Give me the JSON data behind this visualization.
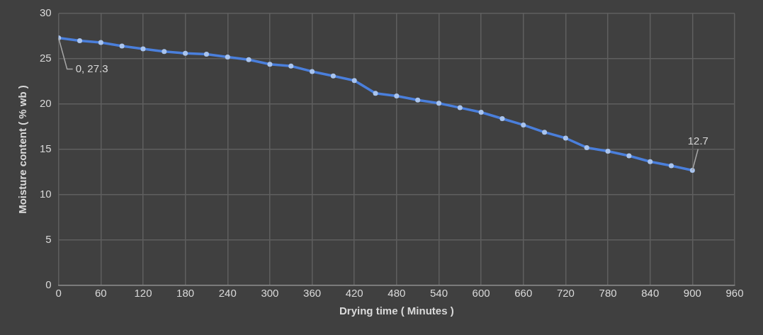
{
  "chart_data": {
    "type": "line",
    "xlabel": "Drying time ( Minutes )",
    "ylabel": "Moisture content ( % wb )",
    "x": [
      0,
      30,
      60,
      90,
      120,
      150,
      180,
      210,
      240,
      270,
      300,
      330,
      360,
      390,
      420,
      450,
      480,
      510,
      540,
      570,
      600,
      630,
      660,
      690,
      720,
      750,
      780,
      810,
      840,
      870,
      900
    ],
    "series": [
      {
        "color": "#4a7fdc",
        "values": [
          27.3,
          27.0,
          26.8,
          26.4,
          26.1,
          25.8,
          25.6,
          25.5,
          25.2,
          24.9,
          24.4,
          24.2,
          23.6,
          23.1,
          22.6,
          21.2,
          20.9,
          20.45,
          20.1,
          19.6,
          19.1,
          18.4,
          17.7,
          16.9,
          16.25,
          15.2,
          14.8,
          14.3,
          13.65,
          13.2,
          12.7
        ]
      }
    ],
    "annotations": [
      {
        "text": "0, 27.3",
        "x": 0,
        "y": 27.3
      },
      {
        "text": "12.7",
        "x": 900,
        "y": 12.7
      }
    ],
    "xlim": [
      0,
      960
    ],
    "xticks": [
      0,
      60,
      120,
      180,
      240,
      300,
      360,
      420,
      480,
      540,
      600,
      660,
      720,
      780,
      840,
      900,
      960
    ],
    "ylim": [
      0,
      30
    ],
    "yticks": [
      0,
      5,
      10,
      15,
      20,
      25,
      30
    ],
    "grid": true,
    "marker": "circle",
    "line_style": "solid",
    "legend": false
  }
}
